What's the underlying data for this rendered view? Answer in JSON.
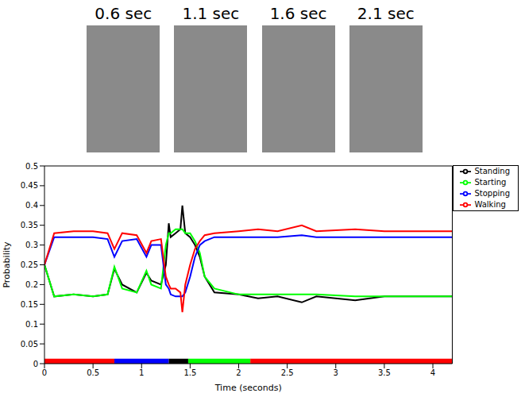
{
  "frames": [
    "0.6 sec",
    "1.1 sec",
    "1.6 sec",
    "2.1 sec"
  ],
  "chart_data": {
    "type": "line",
    "x_label": "Time (seconds)",
    "y_label": "Probability",
    "x": [
      0,
      0.1,
      0.3,
      0.5,
      0.65,
      0.72,
      0.8,
      0.95,
      1.05,
      1.1,
      1.2,
      1.25,
      1.28,
      1.3,
      1.35,
      1.4,
      1.42,
      1.45,
      1.5,
      1.55,
      1.6,
      1.65,
      1.75,
      2.0,
      2.2,
      2.4,
      2.65,
      2.8,
      3.2,
      3.5,
      4.2
    ],
    "series": [
      {
        "name": "Standing",
        "color": "#000000",
        "values": [
          0.25,
          0.17,
          0.175,
          0.17,
          0.175,
          0.24,
          0.2,
          0.18,
          0.23,
          0.21,
          0.2,
          0.25,
          0.355,
          0.32,
          0.33,
          0.34,
          0.4,
          0.33,
          0.32,
          0.3,
          0.27,
          0.22,
          0.18,
          0.175,
          0.165,
          0.17,
          0.155,
          0.17,
          0.16,
          0.17,
          0.17
        ]
      },
      {
        "name": "Starting",
        "color": "#00ff00",
        "values": [
          0.25,
          0.17,
          0.175,
          0.17,
          0.175,
          0.245,
          0.19,
          0.18,
          0.235,
          0.2,
          0.19,
          0.3,
          0.33,
          0.33,
          0.34,
          0.34,
          0.34,
          0.33,
          0.33,
          0.31,
          0.28,
          0.22,
          0.19,
          0.175,
          0.175,
          0.175,
          0.175,
          0.175,
          0.17,
          0.17,
          0.17
        ]
      },
      {
        "name": "Stopping",
        "color": "#0000ff",
        "values": [
          0.25,
          0.32,
          0.32,
          0.32,
          0.315,
          0.27,
          0.31,
          0.315,
          0.27,
          0.3,
          0.3,
          0.2,
          0.19,
          0.175,
          0.17,
          0.17,
          0.17,
          0.18,
          0.22,
          0.27,
          0.3,
          0.31,
          0.32,
          0.32,
          0.32,
          0.32,
          0.325,
          0.32,
          0.32,
          0.32,
          0.32
        ]
      },
      {
        "name": "Walking",
        "color": "#ff0000",
        "values": [
          0.25,
          0.33,
          0.335,
          0.335,
          0.33,
          0.29,
          0.33,
          0.325,
          0.28,
          0.31,
          0.315,
          0.22,
          0.2,
          0.19,
          0.19,
          0.18,
          0.13,
          0.2,
          0.25,
          0.29,
          0.31,
          0.325,
          0.33,
          0.335,
          0.34,
          0.335,
          0.35,
          0.335,
          0.34,
          0.335,
          0.335
        ]
      }
    ],
    "segments": [
      {
        "start": 0,
        "end": 0.72,
        "color": "#ff0000"
      },
      {
        "start": 0.72,
        "end": 1.28,
        "color": "#0000ff"
      },
      {
        "start": 1.28,
        "end": 1.48,
        "color": "#000000"
      },
      {
        "start": 1.48,
        "end": 2.12,
        "color": "#00ff00"
      },
      {
        "start": 2.12,
        "end": 4.2,
        "color": "#ff0000"
      }
    ],
    "xlim": [
      0,
      4.2
    ],
    "xticks": [
      0,
      0.5,
      1,
      1.5,
      2,
      2.5,
      3,
      3.5,
      4
    ],
    "ylim": [
      0,
      0.5
    ],
    "yticks": [
      0,
      0.05,
      0.1,
      0.15,
      0.2,
      0.25,
      0.3,
      0.35,
      0.4,
      0.45,
      0.5
    ],
    "grid": false,
    "legend": "upper right"
  }
}
